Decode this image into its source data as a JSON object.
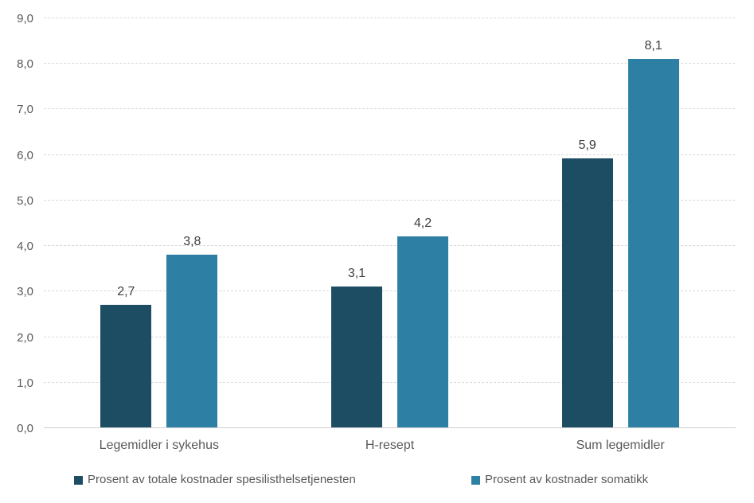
{
  "chart_data": {
    "type": "bar",
    "title": "",
    "xlabel": "",
    "ylabel": "",
    "categories": [
      "Legemidler i sykehus",
      "H-resept",
      "Sum legemidler"
    ],
    "series": [
      {
        "name": "Prosent av totale kostnader spesilisthelsetjenesten",
        "color": "#1d4d63",
        "values": [
          2.7,
          3.1,
          5.9
        ],
        "data_labels": [
          "2,7",
          "3,1",
          "5,9"
        ]
      },
      {
        "name": "Prosent av kostnader somatikk",
        "color": "#2d80a4",
        "values": [
          3.8,
          4.2,
          8.1
        ],
        "data_labels": [
          "3,8",
          "4,2",
          "8,1"
        ]
      }
    ],
    "ylim": [
      0,
      9
    ],
    "ytick_step": 1,
    "ytick_labels": [
      "0,0",
      "1,0",
      "2,0",
      "3,0",
      "4,0",
      "5,0",
      "6,0",
      "7,0",
      "8,0",
      "9,0"
    ],
    "grid": true,
    "gridline_style": "dashed",
    "legend_position": "bottom",
    "value_format": "norwegian-decimal-comma"
  },
  "style": {
    "background": "#ffffff",
    "gridline_color": "#d9d9d9",
    "axis_line_color": "#cfcfcf",
    "tick_label_color": "#595959",
    "category_label_color": "#595959",
    "data_label_color": "#404040",
    "legend_text_color": "#595959"
  }
}
